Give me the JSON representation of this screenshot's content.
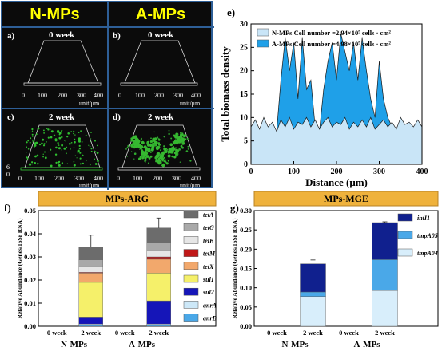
{
  "micro": {
    "headers": [
      "N-MPs",
      "A-MPs"
    ],
    "panels": [
      {
        "letter": "a)",
        "week": "0 week"
      },
      {
        "letter": "b)",
        "week": "0 week"
      },
      {
        "letter": "c)",
        "week": "2 week"
      },
      {
        "letter": "d)",
        "week": "2 week"
      }
    ],
    "ticks": [
      "0",
      "100",
      "200",
      "300",
      "400"
    ],
    "unit": "unit/μm",
    "zaxis": "6",
    "zaxis0": "0"
  },
  "panel_letters": {
    "e": "e)",
    "f": "f)",
    "g": "g)"
  },
  "chart_data": [
    {
      "type": "area",
      "id": "e",
      "xlabel": "Distance (μm)",
      "ylabel": "Total biomass density",
      "xlim": [
        0,
        400
      ],
      "ylim": [
        0,
        30
      ],
      "xticks": [
        0,
        100,
        200,
        300,
        400
      ],
      "yticks": [
        0,
        5,
        10,
        15,
        20,
        25,
        30
      ],
      "legend_position": "top",
      "series": [
        {
          "name": "N-MPs Cell number =2.94×10⁵ cells · cm²",
          "color": "#c9e5f7",
          "x": [
            0,
            10,
            20,
            30,
            40,
            50,
            60,
            70,
            80,
            90,
            100,
            110,
            120,
            130,
            140,
            150,
            160,
            170,
            180,
            190,
            200,
            210,
            220,
            230,
            240,
            250,
            260,
            270,
            280,
            290,
            300,
            310,
            320,
            330,
            340,
            350,
            360,
            370,
            380,
            390,
            400
          ],
          "y": [
            8,
            9.5,
            7.5,
            10,
            8,
            9,
            7,
            9.5,
            8,
            10,
            7.5,
            9,
            8.5,
            10,
            8,
            9.5,
            7.5,
            9,
            10,
            8,
            9,
            8.5,
            10,
            7.5,
            9,
            8,
            9.5,
            8,
            10,
            7.5,
            8.5,
            9.5,
            8,
            9,
            7.5,
            10,
            8.5,
            9,
            8,
            9.5,
            8
          ]
        },
        {
          "name": "A-MPs Cell number =4.98×10⁵ cells · cm²",
          "color": "#1fa0e8",
          "x": [
            0,
            10,
            20,
            30,
            40,
            50,
            60,
            70,
            80,
            90,
            100,
            110,
            120,
            130,
            140,
            150,
            160,
            170,
            180,
            190,
            200,
            210,
            220,
            230,
            240,
            250,
            260,
            270,
            280,
            290,
            300,
            310,
            320,
            330,
            340,
            350,
            360,
            370,
            380,
            390,
            400
          ],
          "y": [
            5,
            6,
            6.5,
            6,
            7,
            6,
            7,
            18,
            27,
            20,
            26,
            14,
            27,
            16,
            18,
            8,
            7,
            16,
            22,
            26,
            18,
            28,
            24,
            20,
            26,
            18,
            27,
            20,
            14,
            10,
            22,
            14,
            10,
            8,
            7,
            6,
            6.5,
            7,
            6,
            6.5,
            6
          ]
        }
      ]
    },
    {
      "type": "bar",
      "id": "f",
      "title": "MPs-ARG",
      "ylabel": "Relative Abundance (Genes/16Sr RNA)",
      "ylim": [
        0,
        0.05
      ],
      "yticks": [
        "0.00",
        "0.01",
        "0.02",
        "0.03",
        "0.04",
        "0.05"
      ],
      "categories": [
        "0 week",
        "2 week",
        "0 week",
        "2 week"
      ],
      "groups": [
        "N-MPs",
        "A-MPs"
      ],
      "legend_position": "right",
      "stacked": true,
      "series": [
        {
          "name": "qnrB",
          "color": "#4aa8e8",
          "values": [
            0,
            0.0005,
            0,
            0.0005
          ]
        },
        {
          "name": "qnrA",
          "color": "#cde8f8",
          "values": [
            0,
            0.0005,
            0,
            0.0005
          ]
        },
        {
          "name": "sul2",
          "color": "#1515b8",
          "values": [
            0,
            0.003,
            0,
            0.01
          ]
        },
        {
          "name": "sul1",
          "color": "#f5f06a",
          "values": [
            0,
            0.015,
            0,
            0.012
          ]
        },
        {
          "name": "tetX",
          "color": "#f2a86c",
          "values": [
            0,
            0.004,
            0,
            0.006
          ]
        },
        {
          "name": "tetM",
          "color": "#c01818",
          "values": [
            0,
            0.0003,
            0,
            0.001
          ]
        },
        {
          "name": "tetB",
          "color": "#e6e6e6",
          "values": [
            0,
            0.0025,
            0,
            0.003
          ]
        },
        {
          "name": "tetG",
          "color": "#a9a9a9",
          "values": [
            0,
            0.003,
            0,
            0.003
          ]
        },
        {
          "name": "tetA",
          "color": "#6c6c6c",
          "values": [
            0,
            0.0055,
            0,
            0.0065
          ]
        }
      ],
      "error_tops": [
        null,
        0.0394,
        null,
        0.0468
      ]
    },
    {
      "type": "bar",
      "id": "g",
      "title": "MPs-MGE",
      "ylabel": "Relative Abundance (Genes/16Sr RNA)",
      "ylim": [
        0,
        0.3
      ],
      "yticks": [
        "0.00",
        "0.05",
        "0.10",
        "0.15",
        "0.20",
        "0.25",
        "0.30"
      ],
      "categories": [
        "0 week",
        "2 week",
        "0 week",
        "2 week"
      ],
      "groups": [
        "N-MPs",
        "A-MPs"
      ],
      "legend_position": "top-right",
      "stacked": true,
      "series": [
        {
          "name": "tmpA04",
          "color": "#d8eefb",
          "values": [
            0,
            0.077,
            0,
            0.093
          ]
        },
        {
          "name": "tmpA05",
          "color": "#4aa8e8",
          "values": [
            0,
            0.012,
            0,
            0.08
          ]
        },
        {
          "name": "intI1",
          "color": "#10208e",
          "values": [
            0,
            0.073,
            0,
            0.096
          ]
        }
      ],
      "error_tops": [
        null,
        0.172,
        null,
        0.271
      ]
    }
  ]
}
